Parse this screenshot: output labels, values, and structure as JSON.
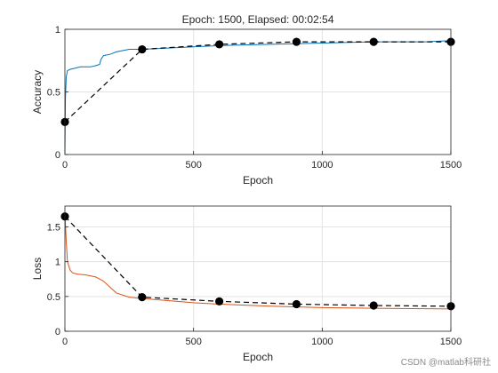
{
  "colors": {
    "accuracy_line": "#0072BD",
    "loss_line": "#D95319",
    "validation": "#000000",
    "grid": "#e3e3e3",
    "axis": "#262626"
  },
  "watermark": "CSDN @matlab科研社",
  "chart_data": [
    {
      "type": "line",
      "title": "Epoch: 1500, Elapsed: 00:02:54",
      "xlabel": "Epoch",
      "ylabel": "Accuracy",
      "xlim": [
        0,
        1500
      ],
      "ylim": [
        0,
        1
      ],
      "xticks": [
        0,
        500,
        1000,
        1500
      ],
      "xtick_labels": [
        "0",
        "500",
        "1000",
        "1500"
      ],
      "yticks": [
        0,
        0.5,
        1
      ],
      "ytick_labels": [
        "0",
        "0.5",
        "1"
      ],
      "grid": true,
      "series": [
        {
          "style": "solid",
          "color_key": "accuracy_line",
          "x": [
            0,
            2,
            5,
            10,
            20,
            40,
            60,
            80,
            100,
            120,
            135,
            140,
            150,
            175,
            200,
            250,
            300,
            400,
            500,
            600,
            800,
            1000,
            1200,
            1400,
            1500
          ],
          "y": [
            0.02,
            0.45,
            0.62,
            0.67,
            0.68,
            0.69,
            0.7,
            0.7,
            0.7,
            0.71,
            0.72,
            0.76,
            0.79,
            0.8,
            0.82,
            0.84,
            0.84,
            0.85,
            0.86,
            0.87,
            0.88,
            0.89,
            0.9,
            0.9,
            0.91
          ]
        },
        {
          "style": "dashed",
          "markers": true,
          "color_key": "validation",
          "x": [
            0,
            300,
            600,
            900,
            1200,
            1500
          ],
          "y": [
            0.26,
            0.84,
            0.88,
            0.9,
            0.9,
            0.9
          ]
        }
      ]
    },
    {
      "type": "line",
      "title": "",
      "xlabel": "Epoch",
      "ylabel": "Loss",
      "xlim": [
        0,
        1500
      ],
      "ylim": [
        0,
        1.8
      ],
      "xticks": [
        0,
        500,
        1000,
        1500
      ],
      "xtick_labels": [
        "0",
        "500",
        "1000",
        "1500"
      ],
      "yticks": [
        0,
        0.5,
        1,
        1.5
      ],
      "ytick_labels": [
        "0",
        "0.5",
        "1",
        "1.5"
      ],
      "grid": true,
      "series": [
        {
          "style": "solid",
          "color_key": "loss_line",
          "x": [
            0,
            5,
            10,
            20,
            30,
            50,
            80,
            120,
            150,
            200,
            250,
            300,
            400,
            500,
            600,
            800,
            1000,
            1200,
            1500
          ],
          "y": [
            1.7,
            1.3,
            1.0,
            0.88,
            0.84,
            0.82,
            0.81,
            0.78,
            0.72,
            0.55,
            0.49,
            0.47,
            0.44,
            0.41,
            0.39,
            0.36,
            0.34,
            0.33,
            0.32
          ]
        },
        {
          "style": "dashed",
          "markers": true,
          "color_key": "validation",
          "x": [
            0,
            300,
            600,
            900,
            1200,
            1500
          ],
          "y": [
            1.65,
            0.49,
            0.43,
            0.39,
            0.37,
            0.36
          ]
        }
      ]
    }
  ]
}
